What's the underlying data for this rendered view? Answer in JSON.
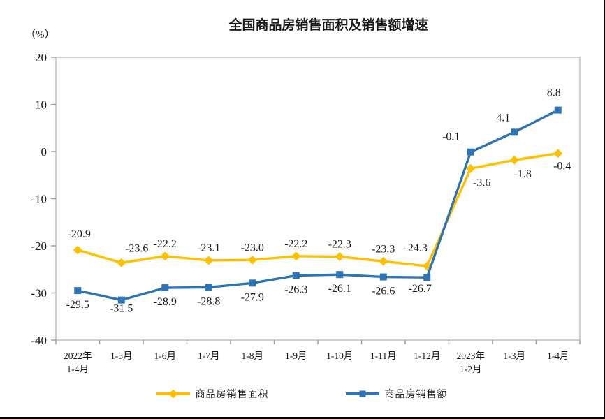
{
  "page": {
    "title": "全国商品房销售面积及销售额增速",
    "unit_label": "（%）"
  },
  "chart_data": {
    "type": "line",
    "title": "全国商品房销售面积及销售额增速",
    "unit": "（%）",
    "categories": [
      "2022年\n1-4月",
      "1-5月",
      "1-6月",
      "1-7月",
      "1-8月",
      "1-9月",
      "1-10月",
      "1-11月",
      "1-12月",
      "2023年\n1-2月",
      "1-3月",
      "1-4月"
    ],
    "series": [
      {
        "name": "商品房销售面积",
        "color": "#FFC000",
        "marker": "diamond",
        "values": [
          -20.9,
          -23.6,
          -22.2,
          -23.1,
          -23.0,
          -22.2,
          -22.3,
          -23.3,
          -24.3,
          -3.6,
          -1.8,
          -0.4
        ],
        "label_side_default": "above",
        "label_side_overrides": {
          "9": "below",
          "10": "below",
          "11": "below"
        }
      },
      {
        "name": "商品房销售额",
        "color": "#2E74B5",
        "marker": "square",
        "values": [
          -29.5,
          -31.5,
          -28.9,
          -28.8,
          -27.9,
          -26.3,
          -26.1,
          -26.6,
          -26.7,
          -0.1,
          4.1,
          8.8
        ],
        "label_side_default": "below",
        "label_side_overrides": {
          "9": "above",
          "10": "above",
          "11": "above"
        }
      }
    ],
    "label_offsets": {
      "0": {
        "0": [
          2,
          -5
        ],
        "1": [
          22,
          -3
        ],
        "8": [
          -16,
          -8
        ],
        "9": [
          16,
          0
        ],
        "10": [
          12,
          0
        ],
        "11": [
          6,
          -2
        ]
      },
      "1": {
        "1": [
          0,
          -8
        ],
        "8": [
          -10,
          -4
        ],
        "9": [
          -28,
          -4
        ],
        "10": [
          -16,
          -3
        ],
        "11": [
          -6,
          -7
        ]
      }
    },
    "y_axis": {
      "min": -40,
      "max": 20,
      "step": 10,
      "ticks": [
        20,
        10,
        0,
        -10,
        -20,
        -30,
        -40
      ]
    },
    "grid": false,
    "legend_position": "bottom",
    "colors": {
      "frame": "#C3C3C3",
      "tick": "#9B9B9B",
      "text": "#1A1A1A"
    }
  }
}
